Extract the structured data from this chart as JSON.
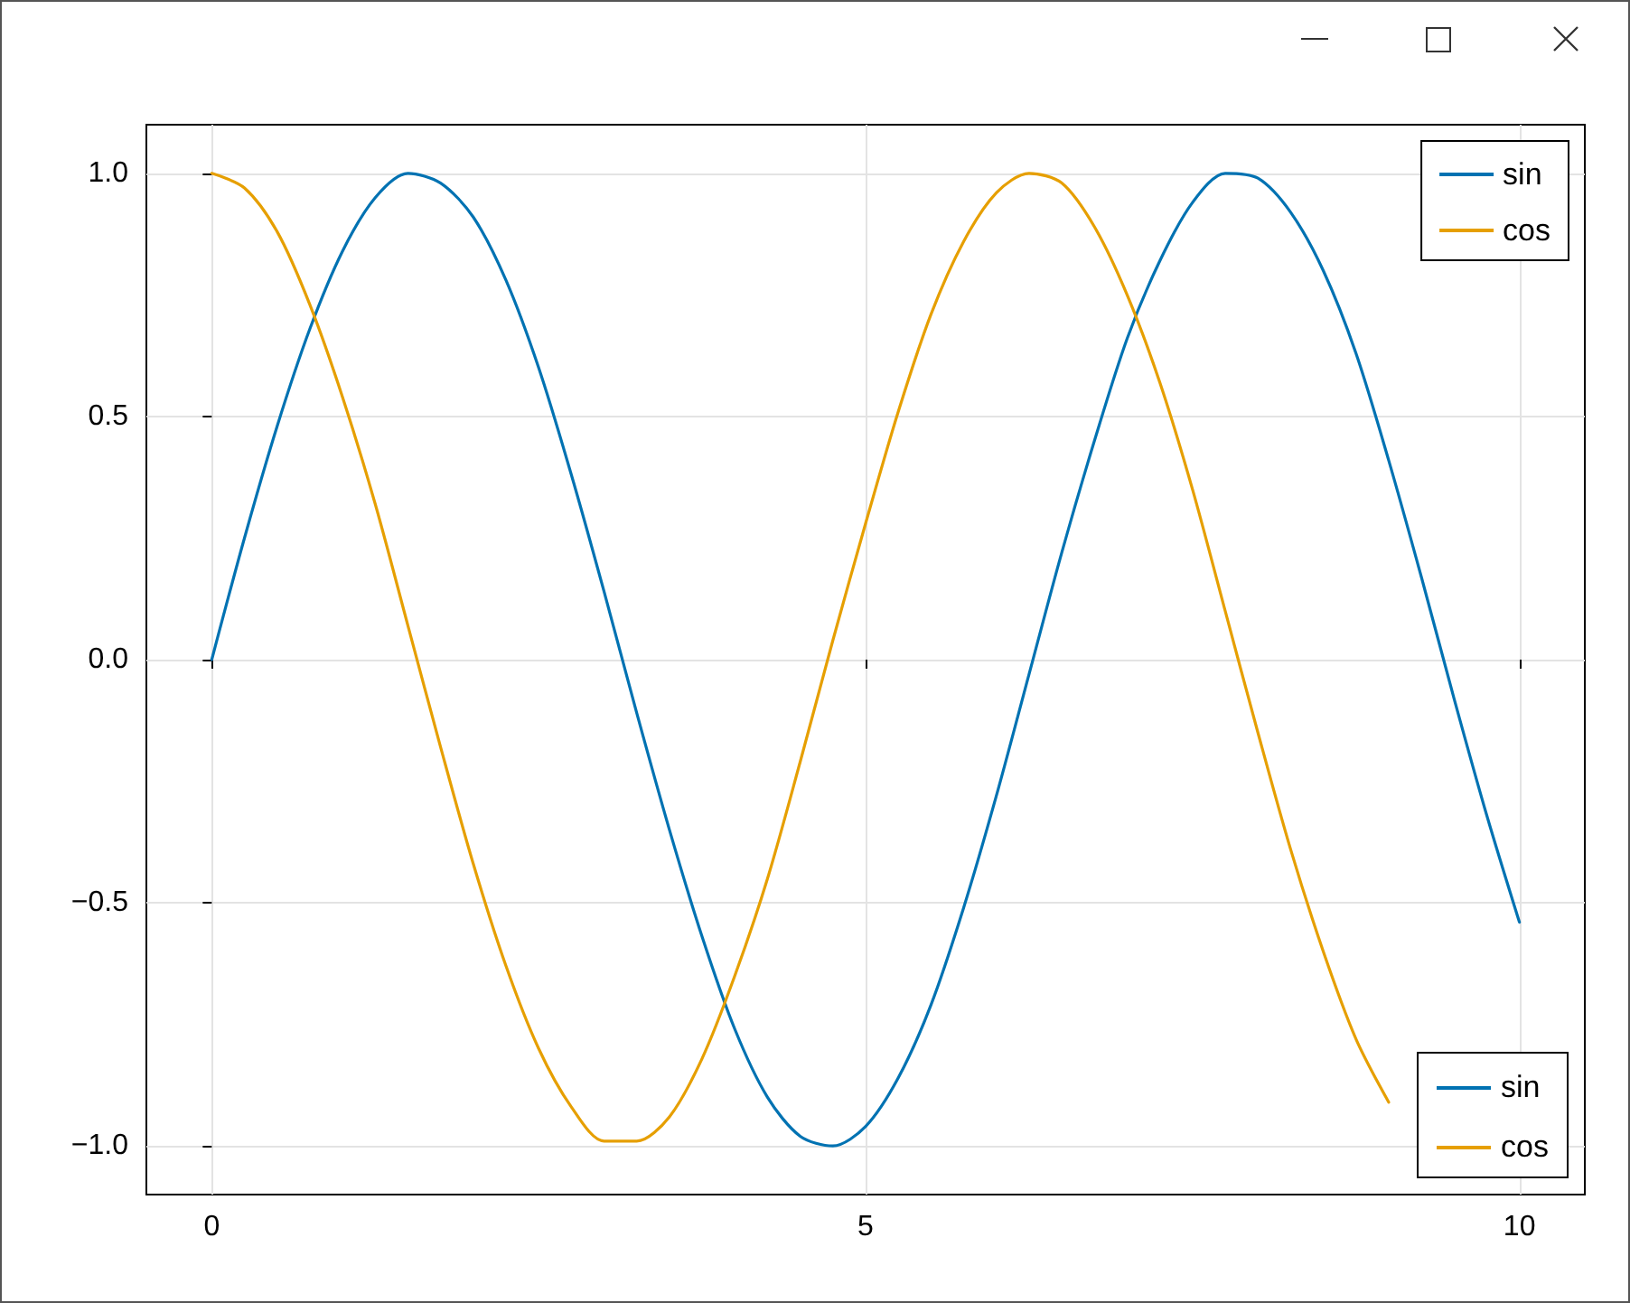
{
  "chart_data": {
    "type": "line",
    "x": [
      0,
      0.25,
      0.5,
      0.75,
      1,
      1.25,
      1.5,
      1.75,
      2,
      2.25,
      2.5,
      2.75,
      3,
      3.25,
      3.5,
      3.75,
      4,
      4.25,
      4.5,
      4.75,
      5,
      5.25,
      5.5,
      5.75,
      6,
      6.25,
      6.5,
      6.75,
      7,
      7.25,
      7.5,
      7.75,
      8,
      8.25,
      8.5,
      8.75,
      9,
      9.25,
      9.5,
      9.75,
      10
    ],
    "series": [
      {
        "name": "sin",
        "color": "#0072b2",
        "values": [
          0,
          0.25,
          0.48,
          0.68,
          0.84,
          0.95,
          1.0,
          0.98,
          0.91,
          0.78,
          0.6,
          0.38,
          0.14,
          -0.11,
          -0.35,
          -0.57,
          -0.76,
          -0.9,
          -0.98,
          -1.0,
          -0.96,
          -0.86,
          -0.71,
          -0.51,
          -0.28,
          -0.03,
          0.22,
          0.45,
          0.66,
          0.82,
          0.94,
          1.0,
          0.99,
          0.92,
          0.8,
          0.63,
          0.41,
          0.17,
          -0.08,
          -0.32,
          -0.54
        ]
      },
      {
        "name": "cos",
        "color": "#e69f00",
        "values": [
          1,
          0.97,
          0.88,
          0.73,
          0.54,
          0.32,
          0.07,
          -0.18,
          -0.42,
          -0.63,
          -0.8,
          -0.92,
          -0.99,
          -0.99,
          -0.94,
          -0.82,
          -0.65,
          -0.45,
          -0.21,
          0.04,
          0.28,
          0.51,
          0.71,
          0.86,
          0.96,
          1.0,
          0.98,
          0.89,
          0.75,
          0.57,
          0.35,
          0.1,
          -0.15,
          -0.39,
          -0.6,
          -0.78,
          -0.91,
          null,
          null,
          null,
          null
        ]
      }
    ],
    "xlim": [
      -0.5,
      10.5
    ],
    "xticks": [
      0,
      5,
      10
    ],
    "ylim": [
      -1.1,
      1.1
    ],
    "yticks": [
      {
        "value": -1,
        "label": "−1.0"
      },
      {
        "value": -0.5,
        "label": "−0.5"
      },
      {
        "value": 0,
        "label": "0.0"
      },
      {
        "value": 0.5,
        "label": "0.5"
      },
      {
        "value": 1,
        "label": "1.0"
      }
    ],
    "grid": true,
    "legend": [
      "top right",
      "bottom right"
    ],
    "marker": "none",
    "line_style": "solid"
  }
}
